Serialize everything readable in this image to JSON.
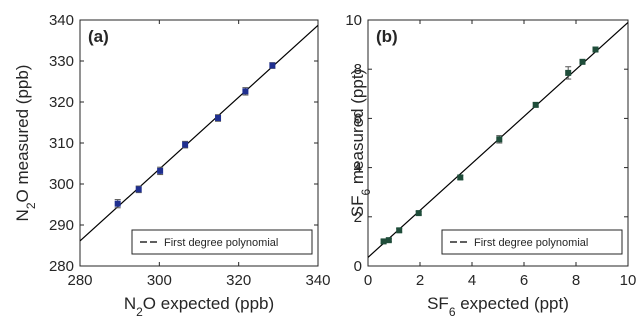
{
  "chart_data": [
    {
      "type": "scatter",
      "panel_label": "(a)",
      "xlabel": {
        "prefix": "N",
        "sub": "2",
        "suffix": "O expected (ppb)"
      },
      "ylabel": {
        "prefix": "N",
        "sub": "2",
        "suffix": "O measured (ppb)"
      },
      "xlim": [
        280,
        340
      ],
      "ylim": [
        280,
        340
      ],
      "xticks": [
        "280",
        "300",
        "320",
        "340"
      ],
      "yticks": [
        "280",
        "290",
        "300",
        "310",
        "320",
        "330",
        "340"
      ],
      "grid": false,
      "legend": {
        "label": "First degree polynomial",
        "placement": "bottom-right"
      },
      "marker_color": "#1f2f8f",
      "line_color": "#000000",
      "fit_line": [
        [
          280,
          286.1
        ],
        [
          340,
          338.7
        ]
      ],
      "series": [
        {
          "x": [
            289.5,
            294.8,
            300.2,
            306.5,
            314.8,
            321.7,
            328.5
          ],
          "y": [
            295.2,
            298.7,
            303.2,
            309.6,
            316.1,
            322.6,
            328.9
          ],
          "err": [
            1.0,
            0.8,
            0.9,
            0.8,
            0.8,
            0.9,
            0.7
          ]
        }
      ]
    },
    {
      "type": "scatter",
      "panel_label": "(b)",
      "xlabel": {
        "prefix": "SF",
        "sub": "6",
        "suffix": " expected (ppt)"
      },
      "ylabel": {
        "prefix": "SF",
        "sub": "6",
        "suffix": " measured (ppt)"
      },
      "xlim": [
        0,
        10
      ],
      "ylim": [
        0,
        10
      ],
      "xticks": [
        "0",
        "2",
        "4",
        "6",
        "8",
        "10"
      ],
      "yticks": [
        "0",
        "2",
        "4",
        "6",
        "8",
        "10"
      ],
      "grid": false,
      "legend": {
        "label": "First degree polynomial",
        "placement": "bottom-right"
      },
      "marker_color": "#1f4d3a",
      "line_color": "#000000",
      "fit_line": [
        [
          0,
          0.35
        ],
        [
          10,
          9.9
        ]
      ],
      "series": [
        {
          "x": [
            0.6,
            0.8,
            1.2,
            1.95,
            3.55,
            5.05,
            6.45,
            7.7,
            8.25,
            8.75
          ],
          "y": [
            1.0,
            1.05,
            1.45,
            2.15,
            3.6,
            5.15,
            6.55,
            7.85,
            8.3,
            8.8
          ],
          "err": [
            0.07,
            0.06,
            0.07,
            0.07,
            0.08,
            0.15,
            0.08,
            0.25,
            0.08,
            0.08
          ]
        }
      ]
    }
  ]
}
